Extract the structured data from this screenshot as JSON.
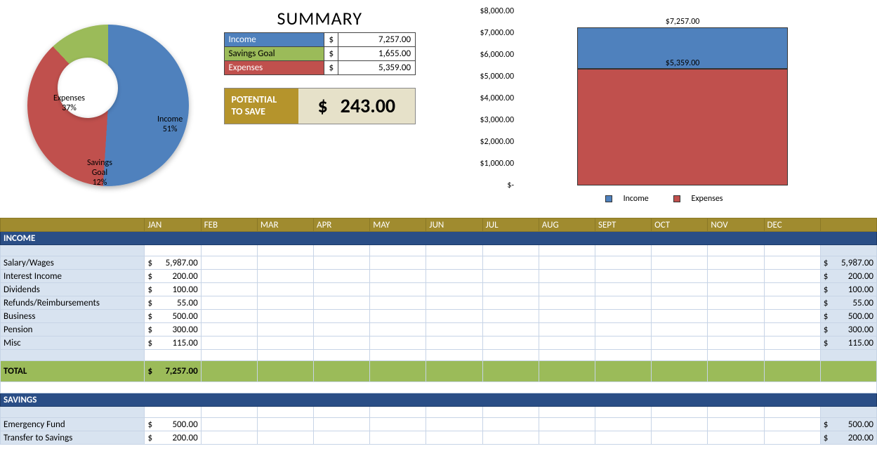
{
  "donut_chart": {
    "type": "donut",
    "slices": [
      {
        "label": "Income",
        "percent": 51,
        "color": "#4f81bd"
      },
      {
        "label": "Expenses",
        "percent": 37,
        "color": "#c0504d"
      },
      {
        "label": "Savings Goal",
        "percent": 12,
        "color": "#9bbb59"
      }
    ],
    "label_income": "Income",
    "percent_income": "51%",
    "label_expenses": "Expenses",
    "percent_expenses": "37%",
    "label_savings": "Savings",
    "label_savings2": "Goal",
    "percent_savings": "12%"
  },
  "summary": {
    "title": "SUMMARY",
    "rows": {
      "income": {
        "label": "Income",
        "cur": "$",
        "value": "7,257.00"
      },
      "savings": {
        "label": "Savings Goal",
        "cur": "$",
        "value": "1,655.00"
      },
      "expenses": {
        "label": "Expenses",
        "cur": "$",
        "value": "5,359.00"
      }
    },
    "potential_label1": "POTENTIAL",
    "potential_label2": "TO SAVE",
    "potential_cur": "$",
    "potential_value": "243.00"
  },
  "bar_chart": {
    "type": "stacked-bar",
    "ymax": 8000,
    "ytick_step": 1000,
    "yticks": [
      "$8,000.00",
      "$7,000.00",
      "$6,000.00",
      "$5,000.00",
      "$4,000.00",
      "$3,000.00",
      "$2,000.00",
      "$1,000.00",
      "$-"
    ],
    "series": [
      {
        "name": "Income",
        "value": 7257,
        "label": "$7,257.00",
        "color": "#4f81bd"
      },
      {
        "name": "Expenses",
        "value": 5359,
        "label": "$5,359.00",
        "color": "#c0504d"
      }
    ],
    "legend": {
      "income": "Income",
      "expenses": "Expenses"
    }
  },
  "months": [
    "JAN",
    "FEB",
    "MAR",
    "APR",
    "MAY",
    "JUN",
    "JUL",
    "AUG",
    "SEPT",
    "OCT",
    "NOV",
    "DEC"
  ],
  "sections": {
    "income": {
      "title": "INCOME",
      "rows": [
        {
          "label": "Salary/Wages",
          "jan": "5,987.00",
          "total": "5,987.00"
        },
        {
          "label": "Interest Income",
          "jan": "200.00",
          "total": "200.00"
        },
        {
          "label": "Dividends",
          "jan": "100.00",
          "total": "100.00"
        },
        {
          "label": "Refunds/Reimbursements",
          "jan": "55.00",
          "total": "55.00"
        },
        {
          "label": "Business",
          "jan": "500.00",
          "total": "500.00"
        },
        {
          "label": "Pension",
          "jan": "300.00",
          "total": "300.00"
        },
        {
          "label": "Misc",
          "jan": "115.00",
          "total": "115.00"
        }
      ],
      "total_label": "TOTAL",
      "total_jan": "7,257.00"
    },
    "savings": {
      "title": "SAVINGS",
      "rows": [
        {
          "label": "Emergency Fund",
          "jan": "500.00",
          "total": "500.00"
        },
        {
          "label": "Transfer to Savings",
          "jan": "200.00",
          "total": "200.00"
        }
      ]
    }
  },
  "colors": {
    "income": "#4f81bd",
    "expenses": "#c0504d",
    "savings": "#9bbb59",
    "header_gold": "#a08b2f",
    "section_blue": "#2a4e86",
    "light_blue": "#d8e3f0"
  }
}
